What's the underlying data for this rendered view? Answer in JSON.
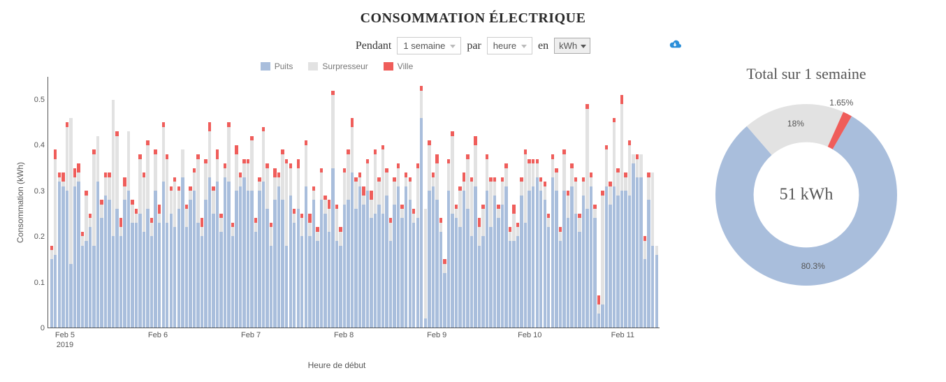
{
  "title": "CONSOMMATION ÉLECTRIQUE",
  "controls": {
    "pendant_label": "Pendant",
    "pendant_value": "1 semaine",
    "par_label": "par",
    "par_value": "heure",
    "en_label": "en",
    "en_value": "kWh"
  },
  "chart": {
    "type": "stacked-bar",
    "ylabel": "Consommation (kWh)",
    "xlabel": "Heure de début",
    "ylim": [
      0,
      0.55
    ],
    "yticks": [
      0,
      0.1,
      0.2,
      0.3,
      0.4,
      0.5
    ],
    "legend": [
      {
        "label": "Puits",
        "color": "#a9bedc"
      },
      {
        "label": "Surpresseur",
        "color": "#e2e2e2"
      },
      {
        "label": "Ville",
        "color": "#ef5d5a"
      }
    ],
    "colors": {
      "puits": "#a9bedc",
      "surpresseur": "#e2e2e2",
      "ville": "#ef5d5a"
    },
    "xticks": [
      "Feb 5",
      "Feb 6",
      "Feb 7",
      "Feb 8",
      "Feb 9",
      "Feb 10",
      "Feb 11"
    ],
    "xsubtick": "2019",
    "series": [
      {
        "p": 0.15,
        "s": 0.02,
        "v": 0.01
      },
      {
        "p": 0.16,
        "s": 0.21,
        "v": 0.02
      },
      {
        "p": 0.32,
        "s": 0.01,
        "v": 0.01
      },
      {
        "p": 0.31,
        "s": 0.01,
        "v": 0.02
      },
      {
        "p": 0.3,
        "s": 0.14,
        "v": 0.01
      },
      {
        "p": 0.14,
        "s": 0.32,
        "v": 0.0
      },
      {
        "p": 0.31,
        "s": 0.02,
        "v": 0.02
      },
      {
        "p": 0.32,
        "s": 0.02,
        "v": 0.02
      },
      {
        "p": 0.18,
        "s": 0.02,
        "v": 0.01
      },
      {
        "p": 0.19,
        "s": 0.1,
        "v": 0.01
      },
      {
        "p": 0.22,
        "s": 0.02,
        "v": 0.01
      },
      {
        "p": 0.18,
        "s": 0.2,
        "v": 0.01
      },
      {
        "p": 0.32,
        "s": 0.1,
        "v": 0.0
      },
      {
        "p": 0.24,
        "s": 0.03,
        "v": 0.01
      },
      {
        "p": 0.29,
        "s": 0.04,
        "v": 0.01
      },
      {
        "p": 0.28,
        "s": 0.05,
        "v": 0.01
      },
      {
        "p": 0.2,
        "s": 0.3,
        "v": 0.0
      },
      {
        "p": 0.26,
        "s": 0.16,
        "v": 0.01
      },
      {
        "p": 0.2,
        "s": 0.02,
        "v": 0.02
      },
      {
        "p": 0.28,
        "s": 0.03,
        "v": 0.02
      },
      {
        "p": 0.3,
        "s": 0.13,
        "v": 0.0
      },
      {
        "p": 0.23,
        "s": 0.04,
        "v": 0.01
      },
      {
        "p": 0.23,
        "s": 0.02,
        "v": 0.01
      },
      {
        "p": 0.25,
        "s": 0.12,
        "v": 0.01
      },
      {
        "p": 0.21,
        "s": 0.12,
        "v": 0.01
      },
      {
        "p": 0.26,
        "s": 0.14,
        "v": 0.01
      },
      {
        "p": 0.2,
        "s": 0.03,
        "v": 0.01
      },
      {
        "p": 0.3,
        "s": 0.08,
        "v": 0.01
      },
      {
        "p": 0.23,
        "s": 0.02,
        "v": 0.02
      },
      {
        "p": 0.32,
        "s": 0.12,
        "v": 0.01
      },
      {
        "p": 0.23,
        "s": 0.14,
        "v": 0.01
      },
      {
        "p": 0.25,
        "s": 0.05,
        "v": 0.01
      },
      {
        "p": 0.22,
        "s": 0.1,
        "v": 0.01
      },
      {
        "p": 0.26,
        "s": 0.04,
        "v": 0.01
      },
      {
        "p": 0.33,
        "s": 0.06,
        "v": 0.0
      },
      {
        "p": 0.22,
        "s": 0.04,
        "v": 0.01
      },
      {
        "p": 0.28,
        "s": 0.02,
        "v": 0.01
      },
      {
        "p": 0.3,
        "s": 0.04,
        "v": 0.01
      },
      {
        "p": 0.23,
        "s": 0.14,
        "v": 0.01
      },
      {
        "p": 0.2,
        "s": 0.02,
        "v": 0.02
      },
      {
        "p": 0.28,
        "s": 0.08,
        "v": 0.01
      },
      {
        "p": 0.33,
        "s": 0.1,
        "v": 0.02
      },
      {
        "p": 0.25,
        "s": 0.05,
        "v": 0.01
      },
      {
        "p": 0.32,
        "s": 0.05,
        "v": 0.02
      },
      {
        "p": 0.21,
        "s": 0.03,
        "v": 0.01
      },
      {
        "p": 0.33,
        "s": 0.02,
        "v": 0.01
      },
      {
        "p": 0.32,
        "s": 0.12,
        "v": 0.01
      },
      {
        "p": 0.2,
        "s": 0.02,
        "v": 0.01
      },
      {
        "p": 0.3,
        "s": 0.08,
        "v": 0.02
      },
      {
        "p": 0.31,
        "s": 0.02,
        "v": 0.01
      },
      {
        "p": 0.33,
        "s": 0.03,
        "v": 0.01
      },
      {
        "p": 0.3,
        "s": 0.06,
        "v": 0.01
      },
      {
        "p": 0.3,
        "s": 0.11,
        "v": 0.01
      },
      {
        "p": 0.21,
        "s": 0.02,
        "v": 0.01
      },
      {
        "p": 0.3,
        "s": 0.02,
        "v": 0.01
      },
      {
        "p": 0.32,
        "s": 0.11,
        "v": 0.01
      },
      {
        "p": 0.26,
        "s": 0.09,
        "v": 0.01
      },
      {
        "p": 0.18,
        "s": 0.04,
        "v": 0.01
      },
      {
        "p": 0.28,
        "s": 0.05,
        "v": 0.02
      },
      {
        "p": 0.31,
        "s": 0.02,
        "v": 0.01
      },
      {
        "p": 0.28,
        "s": 0.1,
        "v": 0.01
      },
      {
        "p": 0.18,
        "s": 0.18,
        "v": 0.01
      },
      {
        "p": 0.29,
        "s": 0.06,
        "v": 0.01
      },
      {
        "p": 0.23,
        "s": 0.02,
        "v": 0.01
      },
      {
        "p": 0.26,
        "s": 0.09,
        "v": 0.02
      },
      {
        "p": 0.2,
        "s": 0.04,
        "v": 0.01
      },
      {
        "p": 0.31,
        "s": 0.09,
        "v": 0.01
      },
      {
        "p": 0.2,
        "s": 0.03,
        "v": 0.02
      },
      {
        "p": 0.28,
        "s": 0.02,
        "v": 0.01
      },
      {
        "p": 0.19,
        "s": 0.02,
        "v": 0.01
      },
      {
        "p": 0.28,
        "s": 0.06,
        "v": 0.01
      },
      {
        "p": 0.25,
        "s": 0.03,
        "v": 0.01
      },
      {
        "p": 0.21,
        "s": 0.05,
        "v": 0.02
      },
      {
        "p": 0.35,
        "s": 0.16,
        "v": 0.01
      },
      {
        "p": 0.19,
        "s": 0.07,
        "v": 0.01
      },
      {
        "p": 0.18,
        "s": 0.03,
        "v": 0.01
      },
      {
        "p": 0.27,
        "s": 0.07,
        "v": 0.01
      },
      {
        "p": 0.28,
        "s": 0.1,
        "v": 0.01
      },
      {
        "p": 0.34,
        "s": 0.1,
        "v": 0.02
      },
      {
        "p": 0.26,
        "s": 0.06,
        "v": 0.01
      },
      {
        "p": 0.31,
        "s": 0.02,
        "v": 0.01
      },
      {
        "p": 0.27,
        "s": 0.02,
        "v": 0.02
      },
      {
        "p": 0.3,
        "s": 0.06,
        "v": 0.01
      },
      {
        "p": 0.24,
        "s": 0.04,
        "v": 0.02
      },
      {
        "p": 0.25,
        "s": 0.13,
        "v": 0.01
      },
      {
        "p": 0.27,
        "s": 0.05,
        "v": 0.01
      },
      {
        "p": 0.25,
        "s": 0.14,
        "v": 0.01
      },
      {
        "p": 0.29,
        "s": 0.05,
        "v": 0.01
      },
      {
        "p": 0.19,
        "s": 0.04,
        "v": 0.01
      },
      {
        "p": 0.27,
        "s": 0.05,
        "v": 0.01
      },
      {
        "p": 0.31,
        "s": 0.04,
        "v": 0.01
      },
      {
        "p": 0.24,
        "s": 0.02,
        "v": 0.01
      },
      {
        "p": 0.31,
        "s": 0.02,
        "v": 0.01
      },
      {
        "p": 0.28,
        "s": 0.04,
        "v": 0.01
      },
      {
        "p": 0.23,
        "s": 0.02,
        "v": 0.01
      },
      {
        "p": 0.24,
        "s": 0.11,
        "v": 0.01
      },
      {
        "p": 0.46,
        "s": 0.06,
        "v": 0.01
      },
      {
        "p": 0.02,
        "s": 0.24,
        "v": 0.0
      },
      {
        "p": 0.3,
        "s": 0.1,
        "v": 0.01
      },
      {
        "p": 0.31,
        "s": 0.02,
        "v": 0.01
      },
      {
        "p": 0.28,
        "s": 0.08,
        "v": 0.02
      },
      {
        "p": 0.21,
        "s": 0.02,
        "v": 0.01
      },
      {
        "p": 0.12,
        "s": 0.02,
        "v": 0.01
      },
      {
        "p": 0.3,
        "s": 0.06,
        "v": 0.01
      },
      {
        "p": 0.25,
        "s": 0.17,
        "v": 0.01
      },
      {
        "p": 0.24,
        "s": 0.02,
        "v": 0.01
      },
      {
        "p": 0.22,
        "s": 0.08,
        "v": 0.01
      },
      {
        "p": 0.3,
        "s": 0.02,
        "v": 0.02
      },
      {
        "p": 0.26,
        "s": 0.11,
        "v": 0.01
      },
      {
        "p": 0.2,
        "s": 0.12,
        "v": 0.01
      },
      {
        "p": 0.31,
        "s": 0.09,
        "v": 0.02
      },
      {
        "p": 0.18,
        "s": 0.04,
        "v": 0.02
      },
      {
        "p": 0.2,
        "s": 0.06,
        "v": 0.01
      },
      {
        "p": 0.3,
        "s": 0.07,
        "v": 0.01
      },
      {
        "p": 0.22,
        "s": 0.1,
        "v": 0.01
      },
      {
        "p": 0.29,
        "s": 0.03,
        "v": 0.01
      },
      {
        "p": 0.24,
        "s": 0.02,
        "v": 0.01
      },
      {
        "p": 0.27,
        "s": 0.05,
        "v": 0.01
      },
      {
        "p": 0.31,
        "s": 0.04,
        "v": 0.01
      },
      {
        "p": 0.19,
        "s": 0.02,
        "v": 0.01
      },
      {
        "p": 0.19,
        "s": 0.06,
        "v": 0.02
      },
      {
        "p": 0.2,
        "s": 0.02,
        "v": 0.01
      },
      {
        "p": 0.29,
        "s": 0.03,
        "v": 0.01
      },
      {
        "p": 0.23,
        "s": 0.15,
        "v": 0.01
      },
      {
        "p": 0.3,
        "s": 0.06,
        "v": 0.01
      },
      {
        "p": 0.31,
        "s": 0.05,
        "v": 0.01
      },
      {
        "p": 0.33,
        "s": 0.03,
        "v": 0.01
      },
      {
        "p": 0.3,
        "s": 0.02,
        "v": 0.01
      },
      {
        "p": 0.28,
        "s": 0.03,
        "v": 0.01
      },
      {
        "p": 0.22,
        "s": 0.02,
        "v": 0.01
      },
      {
        "p": 0.33,
        "s": 0.04,
        "v": 0.01
      },
      {
        "p": 0.3,
        "s": 0.04,
        "v": 0.01
      },
      {
        "p": 0.19,
        "s": 0.02,
        "v": 0.01
      },
      {
        "p": 0.3,
        "s": 0.08,
        "v": 0.01
      },
      {
        "p": 0.24,
        "s": 0.05,
        "v": 0.01
      },
      {
        "p": 0.31,
        "s": 0.04,
        "v": 0.01
      },
      {
        "p": 0.25,
        "s": 0.07,
        "v": 0.01
      },
      {
        "p": 0.21,
        "s": 0.03,
        "v": 0.01
      },
      {
        "p": 0.29,
        "s": 0.03,
        "v": 0.01
      },
      {
        "p": 0.26,
        "s": 0.22,
        "v": 0.01
      },
      {
        "p": 0.31,
        "s": 0.02,
        "v": 0.01
      },
      {
        "p": 0.24,
        "s": 0.02,
        "v": 0.01
      },
      {
        "p": 0.03,
        "s": 0.02,
        "v": 0.02
      },
      {
        "p": 0.05,
        "s": 0.24,
        "v": 0.01
      },
      {
        "p": 0.31,
        "s": 0.08,
        "v": 0.01
      },
      {
        "p": 0.27,
        "s": 0.04,
        "v": 0.01
      },
      {
        "p": 0.31,
        "s": 0.14,
        "v": 0.01
      },
      {
        "p": 0.29,
        "s": 0.05,
        "v": 0.01
      },
      {
        "p": 0.3,
        "s": 0.19,
        "v": 0.02
      },
      {
        "p": 0.3,
        "s": 0.03,
        "v": 0.01
      },
      {
        "p": 0.29,
        "s": 0.11,
        "v": 0.01
      },
      {
        "p": 0.36,
        "s": 0.02,
        "v": 0.0
      },
      {
        "p": 0.33,
        "s": 0.04,
        "v": 0.01
      },
      {
        "p": 0.33,
        "s": 0.05,
        "v": 0.0
      },
      {
        "p": 0.15,
        "s": 0.04,
        "v": 0.01
      },
      {
        "p": 0.28,
        "s": 0.05,
        "v": 0.01
      },
      {
        "p": 0.18,
        "s": 0.16,
        "v": 0.0
      },
      {
        "p": 0.16,
        "s": 0.02,
        "v": 0.0
      }
    ]
  },
  "donut": {
    "title": "Total sur 1 semaine",
    "center": "51 kWh",
    "slices": [
      {
        "label": "80.3%",
        "value": 80.3,
        "color": "#a9bedc"
      },
      {
        "label": "18%",
        "value": 18.05,
        "color": "#e2e2e2"
      },
      {
        "label": "1.65%",
        "value": 1.65,
        "color": "#ef5d5a"
      }
    ],
    "inner_radius_pct": 58
  }
}
